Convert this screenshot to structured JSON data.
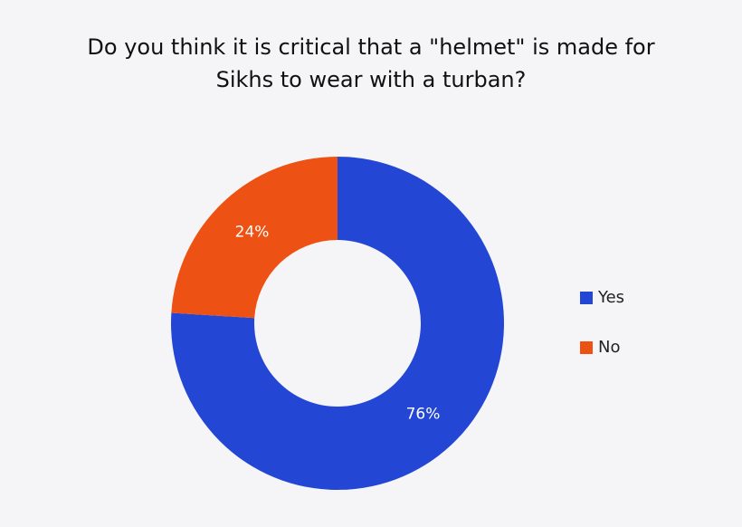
{
  "chart_data": {
    "type": "donut",
    "title": [
      "Do you think it is critical that a \"helmet\" is made for",
      "Sikhs to wear with a turban?"
    ],
    "categories": [
      "Yes",
      "No"
    ],
    "values": [
      76,
      24
    ],
    "value_labels": [
      "76%",
      "24%"
    ],
    "colors": [
      "#2347d4",
      "#ee5114"
    ],
    "legend": "right"
  }
}
